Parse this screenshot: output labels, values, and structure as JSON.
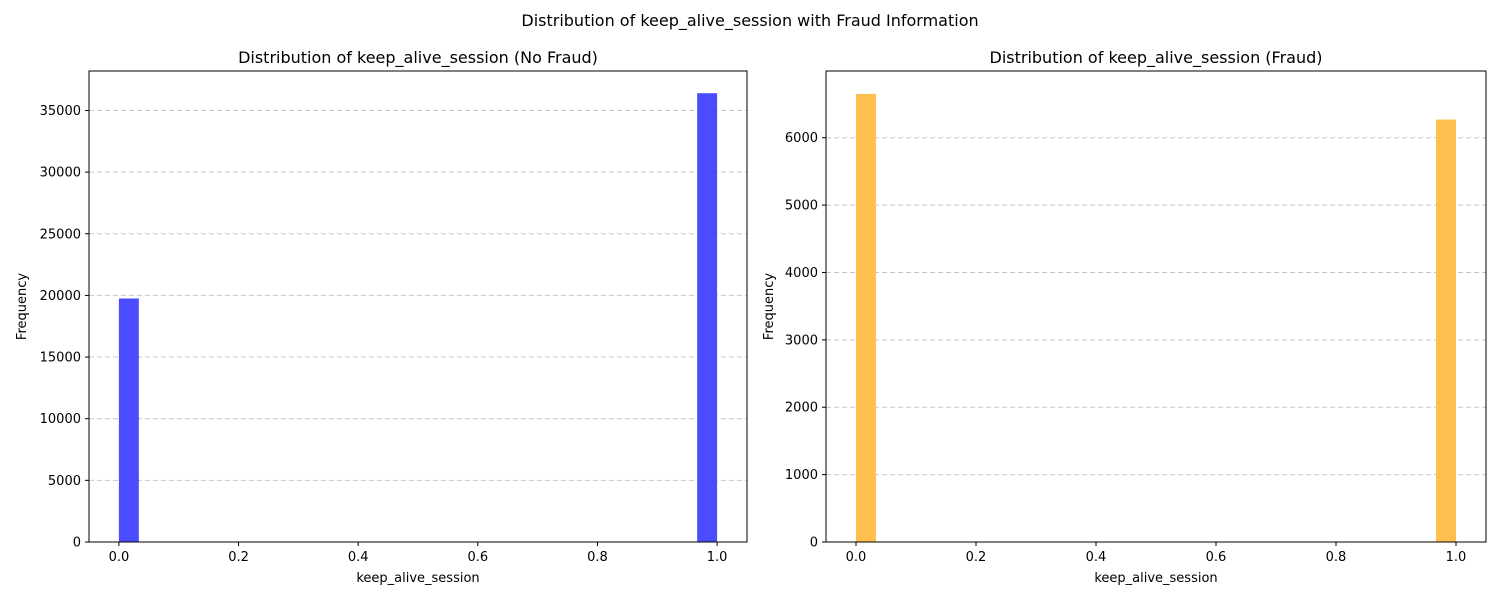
{
  "figure": {
    "title": "Distribution of keep_alive_session with Fraud Information"
  },
  "chart_data": [
    {
      "type": "bar",
      "title": "Distribution of keep_alive_session (No Fraud)",
      "xlabel": "keep_alive_session",
      "ylabel": "Frequency",
      "bins": [
        {
          "x0": 0.0,
          "x1": 0.0333,
          "count": 19750
        },
        {
          "x0": 0.9667,
          "x1": 1.0,
          "count": 36400
        }
      ],
      "xlim": [
        -0.05,
        1.05
      ],
      "ylim": [
        0,
        38200
      ],
      "xticks": [
        0.0,
        0.2,
        0.4,
        0.6,
        0.8,
        1.0
      ],
      "xtick_labels": [
        "0.0",
        "0.2",
        "0.4",
        "0.6",
        "0.8",
        "1.0"
      ],
      "yticks": [
        0,
        5000,
        10000,
        15000,
        20000,
        25000,
        30000,
        35000
      ],
      "ytick_labels": [
        "0",
        "5000",
        "10000",
        "15000",
        "20000",
        "25000",
        "30000",
        "35000"
      ],
      "grid": "y-dashed",
      "color": "#4b4bff"
    },
    {
      "type": "bar",
      "title": "Distribution of keep_alive_session (Fraud)",
      "xlabel": "keep_alive_session",
      "ylabel": "Frequency",
      "bins": [
        {
          "x0": 0.0,
          "x1": 0.0333,
          "count": 6650
        },
        {
          "x0": 0.9667,
          "x1": 1.0,
          "count": 6270
        }
      ],
      "xlim": [
        -0.05,
        1.05
      ],
      "ylim": [
        0,
        6990
      ],
      "xticks": [
        0.0,
        0.2,
        0.4,
        0.6,
        0.8,
        1.0
      ],
      "xtick_labels": [
        "0.0",
        "0.2",
        "0.4",
        "0.6",
        "0.8",
        "1.0"
      ],
      "yticks": [
        0,
        1000,
        2000,
        3000,
        4000,
        5000,
        6000
      ],
      "ytick_labels": [
        "0",
        "1000",
        "2000",
        "3000",
        "4000",
        "5000",
        "6000"
      ],
      "grid": "y-dashed",
      "color": "#ffbf4f"
    }
  ]
}
